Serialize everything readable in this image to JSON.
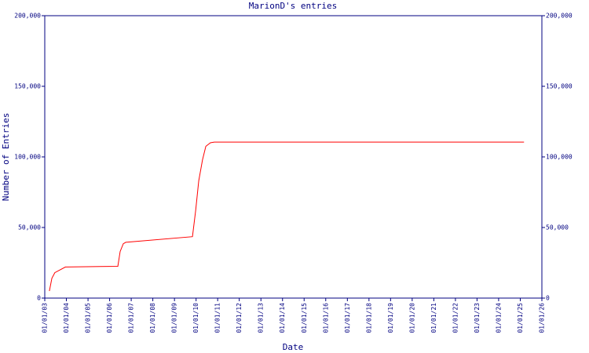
{
  "chart_data": {
    "type": "line",
    "title": "MarionD's entries",
    "x_label": "Date",
    "y_label": "Number of Entries",
    "x": [
      "2003-03-20",
      "2003-05-01",
      "2003-06-20",
      "2003-12-15",
      "2006-05-20",
      "2006-06-28",
      "2006-08-20",
      "2006-10-01",
      "2009-11-01",
      "2009-12-25",
      "2010-02-15",
      "2010-04-20",
      "2010-06-15",
      "2010-09-01",
      "2010-11-05",
      "2025-03-05"
    ],
    "series": [
      {
        "name": "Entries",
        "color": "#ff0000",
        "values": [
          5000,
          14000,
          18000,
          22000,
          22500,
          33000,
          38500,
          39500,
          43500,
          62000,
          83000,
          98000,
          107500,
          110000,
          110500,
          110500
        ]
      }
    ],
    "xlim": [
      "2003-01-01",
      "2026-01-01"
    ],
    "xticks": [
      {
        "value": "2003-01-01",
        "label": "01/01/03"
      },
      {
        "value": "2004-01-01",
        "label": "01/01/04"
      },
      {
        "value": "2005-01-01",
        "label": "01/01/05"
      },
      {
        "value": "2006-01-01",
        "label": "01/01/06"
      },
      {
        "value": "2007-01-01",
        "label": "01/01/07"
      },
      {
        "value": "2008-01-01",
        "label": "01/01/08"
      },
      {
        "value": "2009-01-01",
        "label": "01/01/09"
      },
      {
        "value": "2010-01-01",
        "label": "01/01/10"
      },
      {
        "value": "2011-01-01",
        "label": "01/01/11"
      },
      {
        "value": "2012-01-01",
        "label": "01/01/12"
      },
      {
        "value": "2013-01-01",
        "label": "01/01/13"
      },
      {
        "value": "2014-01-01",
        "label": "01/01/14"
      },
      {
        "value": "2015-01-01",
        "label": "01/01/15"
      },
      {
        "value": "2016-01-01",
        "label": "01/01/16"
      },
      {
        "value": "2017-01-01",
        "label": "01/01/17"
      },
      {
        "value": "2018-01-01",
        "label": "01/01/18"
      },
      {
        "value": "2019-01-01",
        "label": "01/01/19"
      },
      {
        "value": "2020-01-01",
        "label": "01/01/20"
      },
      {
        "value": "2021-01-01",
        "label": "01/01/21"
      },
      {
        "value": "2022-01-01",
        "label": "01/01/22"
      },
      {
        "value": "2023-01-01",
        "label": "01/01/23"
      },
      {
        "value": "2024-01-01",
        "label": "01/01/24"
      },
      {
        "value": "2025-01-01",
        "label": "01/01/25"
      },
      {
        "value": "2026-01-01",
        "label": "01/01/26"
      }
    ],
    "ylim": [
      0,
      200000
    ],
    "yticks": [
      0,
      {
        "value": 50000,
        "label": "50,000"
      },
      {
        "value": 100000,
        "label": "100,000"
      },
      {
        "value": 150000,
        "label": "150,000"
      },
      {
        "value": 200000,
        "label": "200,000"
      }
    ],
    "grid": false
  }
}
